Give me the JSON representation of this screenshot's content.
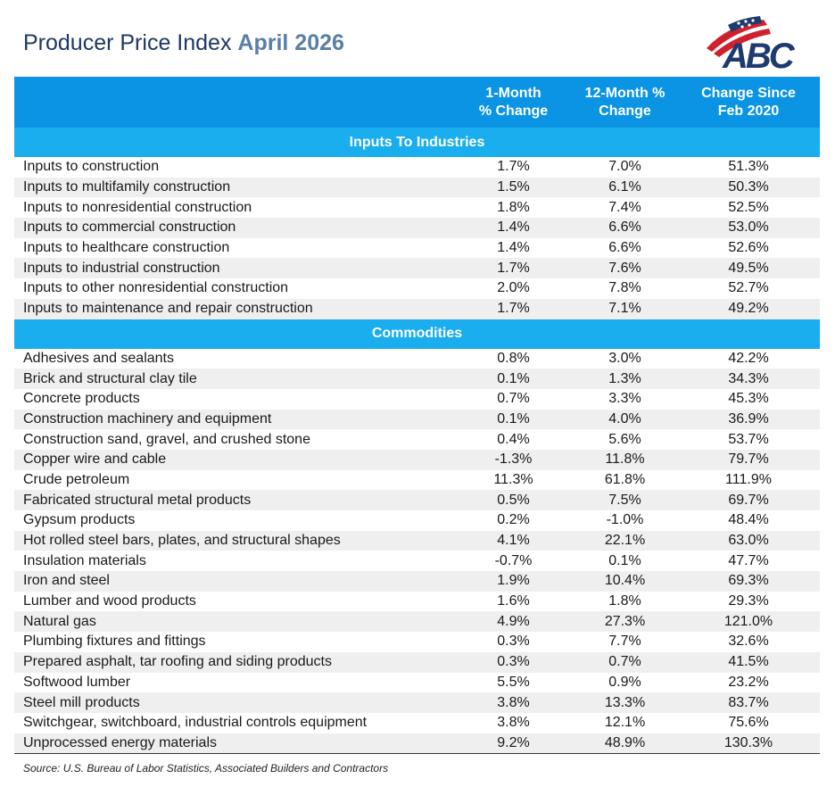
{
  "title": {
    "prefix": "Producer Price Index",
    "highlight": "April 2026"
  },
  "logo": {
    "text": "ABC",
    "colors": {
      "navy": "#1f3a6e",
      "red": "#d0202e"
    }
  },
  "source": "Source: U.S. Bureau of Labor Statistics, Associated Builders and Contractors",
  "colors": {
    "header": "#0a94e3",
    "section": "#1aaeee",
    "stripe": "#efefef"
  },
  "chart_data": {
    "type": "table",
    "columns": [
      "",
      "1-Month\n% Change",
      "12-Month %\nChange",
      "Change Since\nFeb 2020"
    ],
    "sections": [
      {
        "name": "Inputs To Industries",
        "rows": [
          {
            "label": "Inputs to construction",
            "values": [
              "1.7%",
              "7.0%",
              "51.3%"
            ]
          },
          {
            "label": "Inputs to multifamily construction",
            "values": [
              "1.5%",
              "6.1%",
              "50.3%"
            ]
          },
          {
            "label": "Inputs to nonresidential construction",
            "values": [
              "1.8%",
              "7.4%",
              "52.5%"
            ]
          },
          {
            "label": "Inputs to commercial construction",
            "values": [
              "1.4%",
              "6.6%",
              "53.0%"
            ]
          },
          {
            "label": "Inputs to healthcare construction",
            "values": [
              "1.4%",
              "6.6%",
              "52.6%"
            ]
          },
          {
            "label": "Inputs to industrial construction",
            "values": [
              "1.7%",
              "7.6%",
              "49.5%"
            ]
          },
          {
            "label": "Inputs to other nonresidential construction",
            "values": [
              "2.0%",
              "7.8%",
              "52.7%"
            ]
          },
          {
            "label": "Inputs to maintenance and repair construction",
            "values": [
              "1.7%",
              "7.1%",
              "49.2%"
            ]
          }
        ]
      },
      {
        "name": "Commodities",
        "rows": [
          {
            "label": "Adhesives and sealants",
            "values": [
              "0.8%",
              "3.0%",
              "42.2%"
            ]
          },
          {
            "label": "Brick and structural clay tile",
            "values": [
              "0.1%",
              "1.3%",
              "34.3%"
            ]
          },
          {
            "label": "Concrete products",
            "values": [
              "0.7%",
              "3.3%",
              "45.3%"
            ]
          },
          {
            "label": "Construction machinery and equipment",
            "values": [
              "0.1%",
              "4.0%",
              "36.9%"
            ]
          },
          {
            "label": "Construction sand, gravel, and crushed stone",
            "values": [
              "0.4%",
              "5.6%",
              "53.7%"
            ]
          },
          {
            "label": "Copper wire and cable",
            "values": [
              "-1.3%",
              "11.8%",
              "79.7%"
            ]
          },
          {
            "label": "Crude petroleum",
            "values": [
              "11.3%",
              "61.8%",
              "111.9%"
            ]
          },
          {
            "label": "Fabricated structural metal products",
            "values": [
              "0.5%",
              "7.5%",
              "69.7%"
            ]
          },
          {
            "label": "Gypsum products",
            "values": [
              "0.2%",
              "-1.0%",
              "48.4%"
            ]
          },
          {
            "label": "Hot rolled steel bars, plates, and structural shapes",
            "values": [
              "4.1%",
              "22.1%",
              "63.0%"
            ]
          },
          {
            "label": "Insulation materials",
            "values": [
              "-0.7%",
              "0.1%",
              "47.7%"
            ]
          },
          {
            "label": "Iron and steel",
            "values": [
              "1.9%",
              "10.4%",
              "69.3%"
            ]
          },
          {
            "label": "Lumber and wood products",
            "values": [
              "1.6%",
              "1.8%",
              "29.3%"
            ]
          },
          {
            "label": "Natural gas",
            "values": [
              "4.9%",
              "27.3%",
              "121.0%"
            ]
          },
          {
            "label": "Plumbing fixtures and fittings",
            "values": [
              "0.3%",
              "7.7%",
              "32.6%"
            ]
          },
          {
            "label": "Prepared asphalt, tar roofing and siding products",
            "values": [
              "0.3%",
              "0.7%",
              "41.5%"
            ]
          },
          {
            "label": "Softwood lumber",
            "values": [
              "5.5%",
              "0.9%",
              "23.2%"
            ]
          },
          {
            "label": "Steel mill products",
            "values": [
              "3.8%",
              "13.3%",
              "83.7%"
            ]
          },
          {
            "label": "Switchgear, switchboard, industrial controls equipment",
            "values": [
              "3.8%",
              "12.1%",
              "75.6%"
            ]
          },
          {
            "label": "Unprocessed energy materials",
            "values": [
              "9.2%",
              "48.9%",
              "130.3%"
            ]
          }
        ]
      }
    ]
  }
}
